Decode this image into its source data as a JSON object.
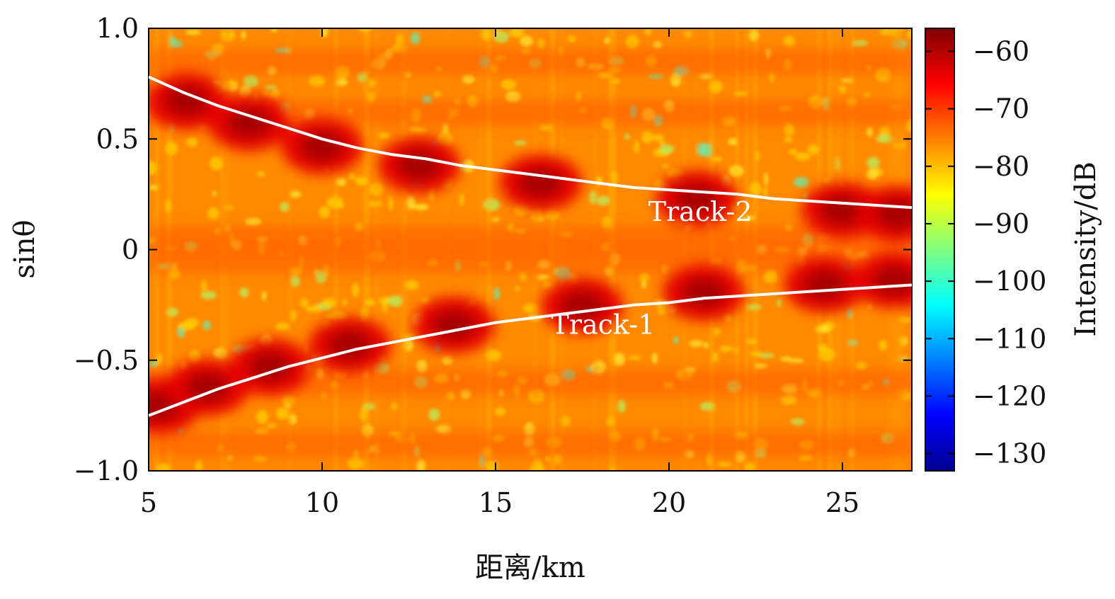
{
  "chart_data": {
    "type": "heatmap",
    "xlabel": "距离/km",
    "ylabel": "sinθ",
    "colorbar_label": "Intensity/dB",
    "xlim": [
      5,
      27
    ],
    "ylim": [
      -1.0,
      1.0
    ],
    "x_ticks": [
      5,
      10,
      15,
      20,
      25
    ],
    "x_tick_labels": [
      "5",
      "10",
      "15",
      "20",
      "25"
    ],
    "y_ticks": [
      1.0,
      0.5,
      0,
      -0.5,
      -1.0
    ],
    "y_tick_labels": [
      "1.0",
      "0.5",
      "0",
      "−0.5",
      "−1.0"
    ],
    "colorbar_range": [
      -133,
      -56
    ],
    "colorbar_ticks": [
      -60,
      -70,
      -80,
      -90,
      -100,
      -110,
      -120,
      -130
    ],
    "colorbar_tick_labels": [
      "−60",
      "−70",
      "−80",
      "−90",
      "−100",
      "−110",
      "−120",
      "−130"
    ],
    "colormap": "jet",
    "tracks": [
      {
        "name": "Track-1",
        "color": "#ffffff",
        "x": [
          5,
          6,
          7,
          8,
          9,
          10,
          11,
          12,
          13,
          14,
          15,
          16,
          17,
          18,
          19,
          20,
          21,
          22,
          23,
          24,
          25,
          26,
          27
        ],
        "y": [
          -0.75,
          -0.69,
          -0.63,
          -0.58,
          -0.53,
          -0.49,
          -0.45,
          -0.42,
          -0.39,
          -0.36,
          -0.33,
          -0.31,
          -0.29,
          -0.27,
          -0.25,
          -0.24,
          -0.22,
          -0.21,
          -0.2,
          -0.19,
          -0.18,
          -0.17,
          -0.16
        ]
      },
      {
        "name": "Track-2",
        "color": "#ffffff",
        "x": [
          5,
          6,
          7,
          8,
          9,
          10,
          11,
          12,
          13,
          14,
          15,
          16,
          17,
          18,
          19,
          20,
          21,
          22,
          23,
          24,
          25,
          26,
          27
        ],
        "y": [
          0.78,
          0.71,
          0.65,
          0.6,
          0.55,
          0.5,
          0.46,
          0.43,
          0.41,
          0.38,
          0.36,
          0.34,
          0.32,
          0.3,
          0.28,
          0.27,
          0.26,
          0.25,
          0.23,
          0.22,
          0.21,
          0.2,
          0.19
        ]
      }
    ],
    "track_labels": [
      {
        "text": "Track-1",
        "x": 18.1,
        "y": -0.38
      },
      {
        "text": "Track-2",
        "x": 20.9,
        "y": 0.13
      }
    ]
  },
  "colors": {
    "strong": "#a00000",
    "background_field": "#ff8c00",
    "axes": "#000000",
    "track_line": "#ffffff"
  }
}
